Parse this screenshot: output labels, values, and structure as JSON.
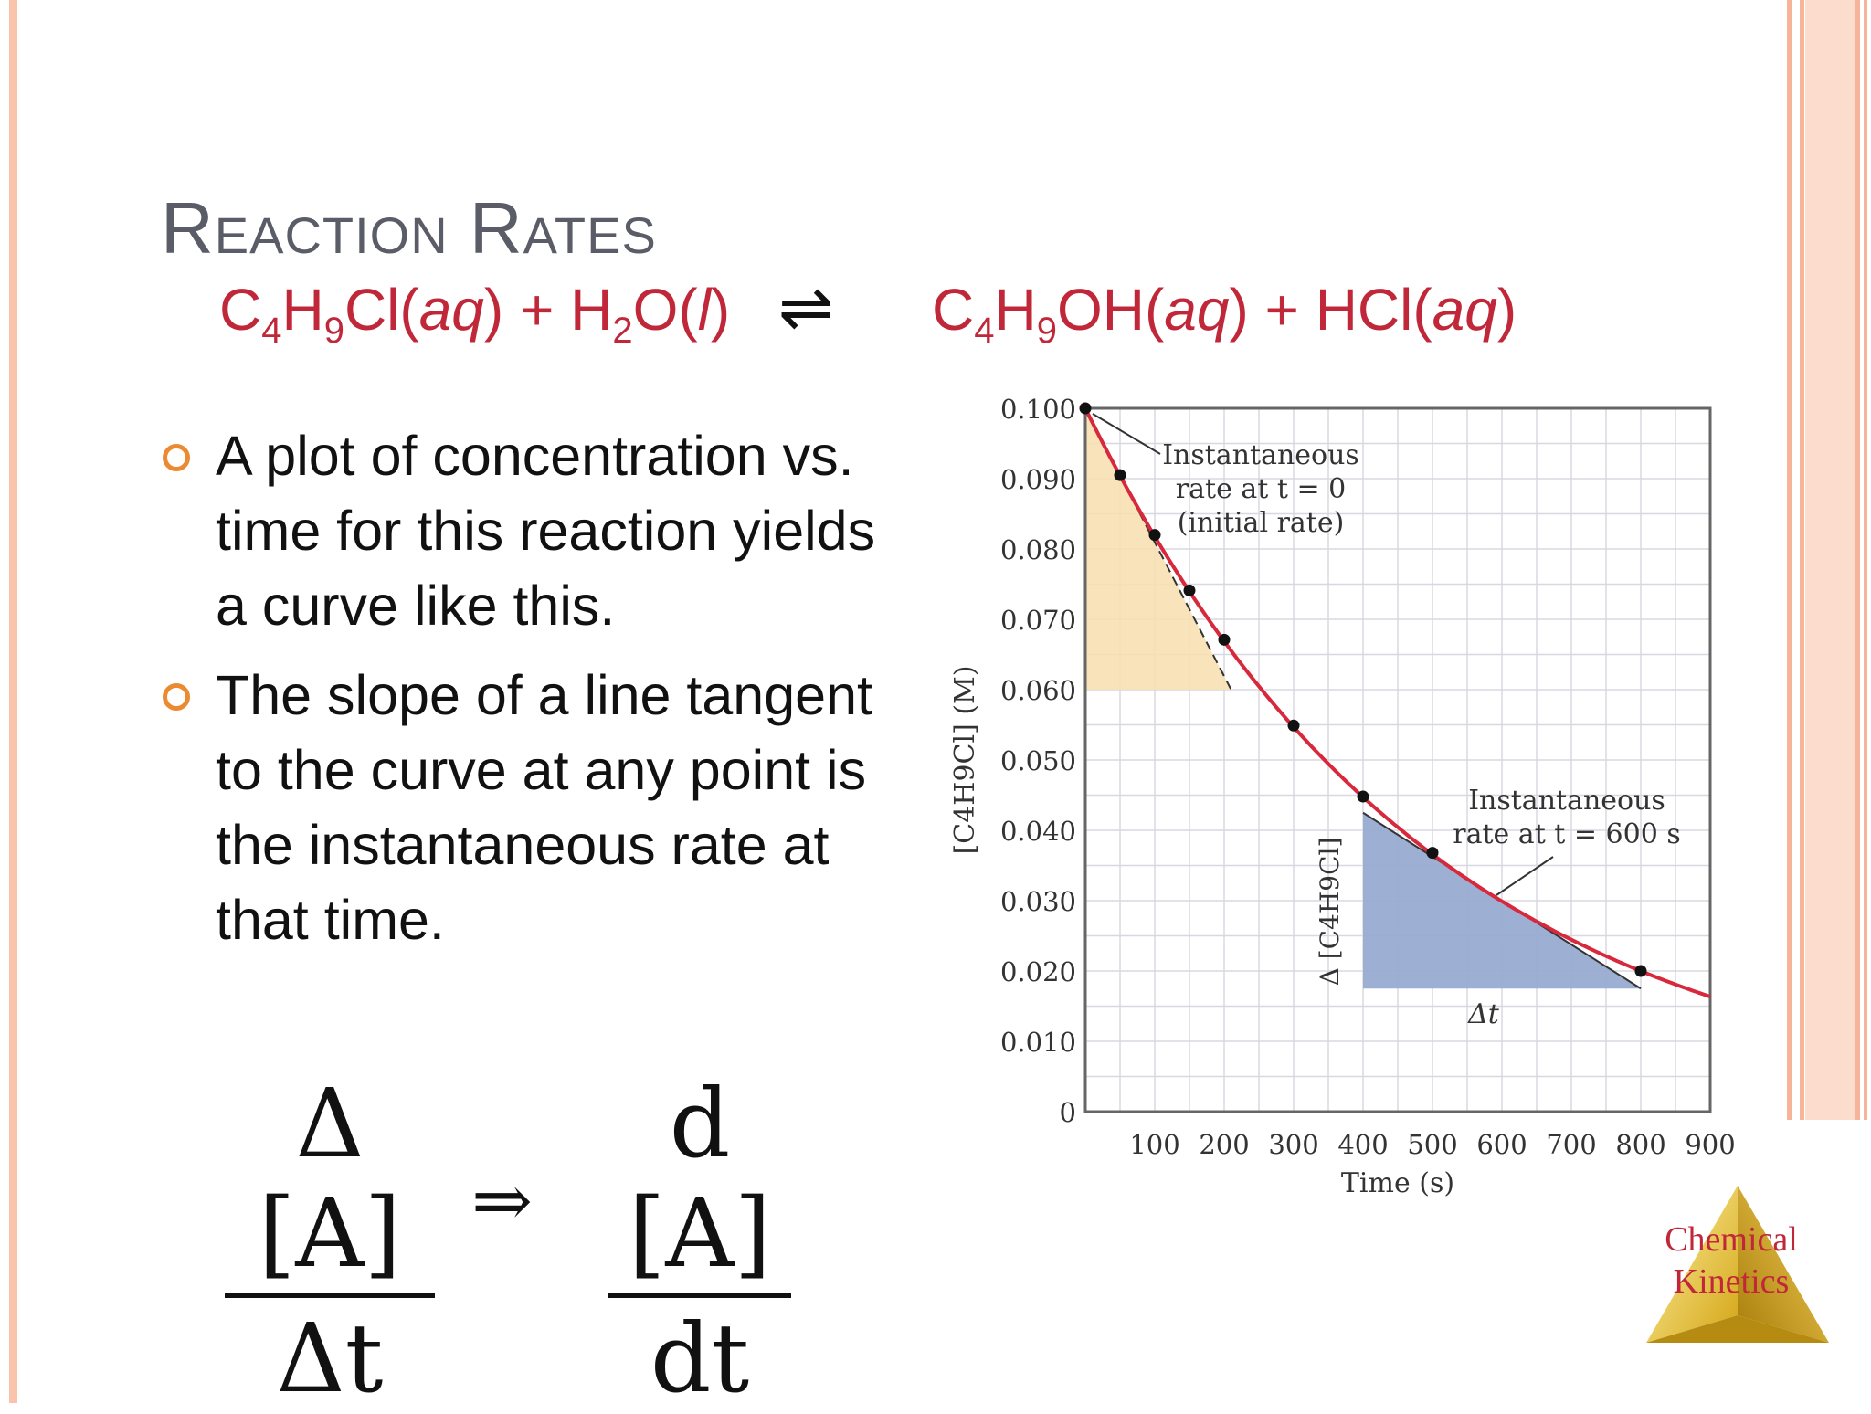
{
  "slide": {
    "title": "Reaction Rates",
    "equation": {
      "reactant1_main": "C",
      "reactant1_sub1": "4",
      "reactant1_mid": "H",
      "reactant1_sub2": "9",
      "reactant1_end": "Cl",
      "reactant1_state": "aq",
      "plus1": " + ",
      "reactant2_main": "H",
      "reactant2_sub": "2",
      "reactant2_end": "O",
      "reactant2_state": "l",
      "arrow": "⇌",
      "product1_main": "C",
      "product1_sub1": "4",
      "product1_mid": "H",
      "product1_sub2": "9",
      "product1_end": "OH",
      "product1_state": "aq",
      "plus2": " + ",
      "product2_main": "HCl",
      "product2_state": "aq"
    },
    "bullets": [
      "A plot of concentration vs. time for this reaction yields a curve like this.",
      "The slope of a line tangent to the curve at any point is the instantaneous rate at that time."
    ],
    "formula": {
      "left_num": "Δ [A]",
      "left_den": "Δt",
      "implies": "⇒",
      "right_num": "d [A]",
      "right_den": "dt"
    },
    "logo_text": [
      "Chemical",
      "Kinetics"
    ],
    "colors": {
      "accent_red": "#c0283a",
      "title_gray": "#5a5d68",
      "bullet_orange": "#ec8a32",
      "border_peach": "#f7b49a"
    },
    "icons": {
      "bullet": "hollow-circle-bullet",
      "logo": "gold-triangle-logo"
    }
  },
  "chart_data": {
    "type": "line",
    "xlabel": "Time (s)",
    "ylabel": "[C4H9Cl] (M)",
    "xlim": [
      0,
      900
    ],
    "ylim": [
      0,
      0.1
    ],
    "x_ticks": [
      "100",
      "200",
      "300",
      "400",
      "500",
      "600",
      "700",
      "800",
      "900"
    ],
    "y_ticks": [
      "0",
      "0.010",
      "0.020",
      "0.030",
      "0.040",
      "0.050",
      "0.060",
      "0.070",
      "0.080",
      "0.090",
      "0.100"
    ],
    "grid": true,
    "series": [
      {
        "x": [
          0,
          50,
          100,
          150,
          200,
          300,
          400,
          500,
          800
        ],
        "values": [
          0.1,
          0.0905,
          0.082,
          0.0741,
          0.0671,
          0.0549,
          0.0448,
          0.0368,
          0.02
        ]
      }
    ],
    "annotations": [
      {
        "text": [
          "Instantaneous",
          "rate at t = 0",
          "(initial rate)"
        ],
        "at_x": 0,
        "at_y": 0.1
      },
      {
        "text": [
          "Instantaneous",
          "rate at t = 600 s"
        ],
        "at_x": 600,
        "at_y": 0.03
      },
      {
        "text": [
          "Δ [C4H9Cl]"
        ]
      },
      {
        "text": [
          "Δt"
        ]
      }
    ],
    "tangent_at_0": {
      "from": [
        0,
        0.1
      ],
      "to": [
        210,
        0.06
      ]
    },
    "tangent_at_600": {
      "from": [
        400,
        0.0425
      ],
      "to": [
        800,
        0.0175
      ]
    }
  }
}
